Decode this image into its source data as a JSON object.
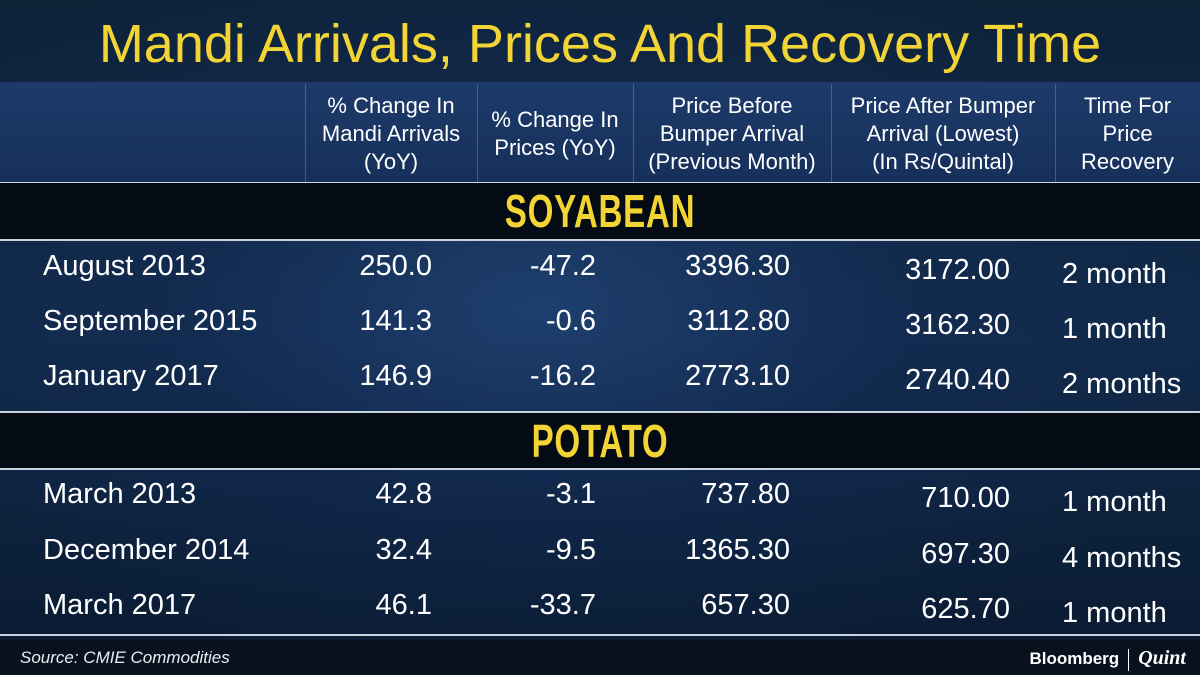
{
  "title": "Mandi Arrivals, Prices And Recovery Time",
  "colors": {
    "title": "#f2d434",
    "band_text": "#f2d434",
    "background": "#0b1a2c",
    "band_bg": "#050b14"
  },
  "chart_data": {
    "type": "table",
    "title": "Mandi Arrivals, Prices And Recovery Time",
    "columns": [
      "",
      "% Change In Mandi Arrivals (YoY)",
      "% Change In Prices (YoY)",
      "Price Before Bumper Arrival (Previous Month)",
      "Price After Bumper Arrival (Lowest) (In Rs/Quintal)",
      "Time For Price Recovery"
    ],
    "column_lines": [
      [
        "",
        "",
        ""
      ],
      [
        "% Change In",
        "Mandi Arrivals",
        "(YoY)"
      ],
      [
        "% Change In",
        "Prices (YoY)",
        ""
      ],
      [
        "Price Before",
        "Bumper Arrival",
        "(Previous Month)"
      ],
      [
        "Price After Bumper",
        "Arrival (Lowest)",
        "(In Rs/Quintal)"
      ],
      [
        "Time For",
        "Price",
        "Recovery"
      ]
    ],
    "sections": [
      {
        "name": "SOYABEAN",
        "rows": [
          [
            "August 2013",
            "250.0",
            "-47.2",
            "3396.30",
            "3172.00",
            "2 month"
          ],
          [
            "September 2015",
            "141.3",
            "-0.6",
            "3112.80",
            "3162.30",
            "1 month"
          ],
          [
            "January 2017",
            "146.9",
            "-16.2",
            "2773.10",
            "2740.40",
            "2 months"
          ]
        ]
      },
      {
        "name": "POTATO",
        "rows": [
          [
            "March 2013",
            "42.8",
            "-3.1",
            "737.80",
            "710.00",
            "1 month"
          ],
          [
            "December 2014",
            "32.4",
            "-9.5",
            "1365.30",
            "697.30",
            "4 months"
          ],
          [
            "March 2017",
            "46.1",
            "-33.7",
            "657.30",
            "625.70",
            "1 month"
          ]
        ]
      }
    ]
  },
  "footer": {
    "source": "Source: CMIE Commodities",
    "brand_left": "Bloomberg",
    "brand_right": "Quint"
  }
}
